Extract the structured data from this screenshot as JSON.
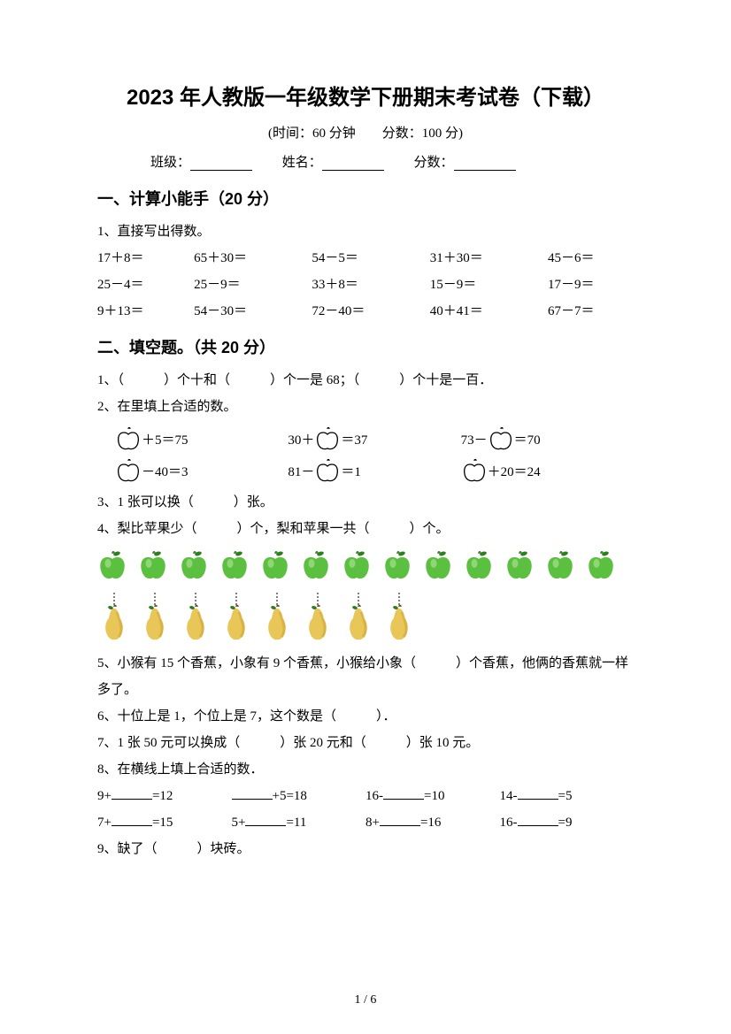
{
  "title": "2023 年人教版一年级数学下册期末考试卷（下载）",
  "subtitle": "(时间：60 分钟　　分数：100 分)",
  "info": {
    "class_label": "班级：",
    "name_label": "姓名：",
    "score_label": "分数："
  },
  "section1": {
    "heading": "一、计算小能手（20 分）",
    "q1_label": "1、直接写出得数。",
    "rows": [
      [
        "17＋8＝",
        "65＋30＝",
        "54－5＝",
        "31＋30＝",
        "45－6＝"
      ],
      [
        "25－4＝",
        "25－9＝",
        "33＋8＝",
        "15－9＝",
        "17－9＝"
      ],
      [
        "9＋13＝",
        "54－30＝",
        "72－40＝",
        "40＋41＝",
        "67－7＝"
      ]
    ]
  },
  "section2": {
    "heading": "二、填空题。（共 20 分）",
    "q1": "1、（　　　）个十和（　　　）个一是 68；（　　　）个十是一百．",
    "q2": "2、在里填上合适的数。",
    "apple_eq": {
      "row1": [
        {
          "pre": "",
          "post": "＋5＝75",
          "apple_first": true
        },
        {
          "pre": "30＋",
          "post": "＝37",
          "apple_first": false
        },
        {
          "pre": "73－",
          "post": "＝70",
          "apple_first": false
        }
      ],
      "row2": [
        {
          "pre": "",
          "post": "－40＝3",
          "apple_first": true
        },
        {
          "pre": "81－",
          "post": "＝1",
          "apple_first": false
        },
        {
          "pre": "",
          "post": "＋20＝24",
          "apple_first": true
        }
      ]
    },
    "q3": "3、1 张可以换（　　　）张。",
    "q4": "4、梨比苹果少（　　　）个，梨和苹果一共（　　　）个。",
    "fruit": {
      "apple_count": 13,
      "pear_count": 8,
      "apple_color": "#5bbf3f",
      "apple_leaf": "#2e7d1f",
      "pear_body": "#e8c657",
      "pear_shadow": "#c8a030"
    },
    "q5": "5、小猴有 15 个香蕉，小象有 9 个香蕉，小猴给小象（　　　）个香蕉，他俩的香蕉就一样多了。",
    "q6": "6、十位上是 1，个位上是 7，这个数是（　　　）．",
    "q7": "7、1 张 50 元可以换成（　　　）张 20 元和（　　　）张 10 元。",
    "q8": "8、在横线上填上合适的数．",
    "fill_rows": [
      [
        {
          "pre": "9+",
          "post": "=12"
        },
        {
          "pre": "",
          "post": "+5=18"
        },
        {
          "pre": "16-",
          "post": "=10"
        },
        {
          "pre": "14-",
          "post": "=5"
        }
      ],
      [
        {
          "pre": "7+",
          "post": "=15"
        },
        {
          "pre": "5+",
          "post": "=11"
        },
        {
          "pre": "8+",
          "post": "=16"
        },
        {
          "pre": "16-",
          "post": "=9"
        }
      ]
    ],
    "q9": "9、缺了（　　　）块砖。"
  },
  "footer": "1 / 6",
  "colors": {
    "text": "#000000",
    "background": "#ffffff"
  }
}
